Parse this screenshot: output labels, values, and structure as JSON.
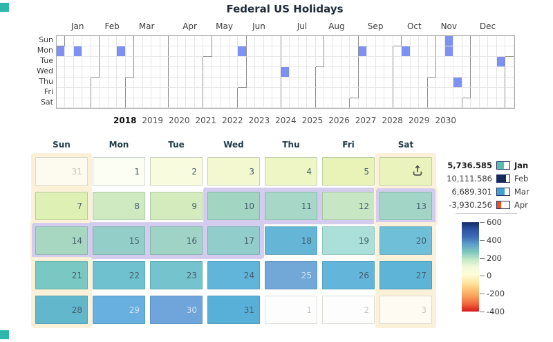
{
  "title": "Federal US Holidays",
  "brand_color": "#2eb6aa",
  "chart_data": {
    "type": "heatmap",
    "subtype": "calendar-year-plus-month-view",
    "title": "Federal US Holidays",
    "year_selected": 2018,
    "years_available": [
      2018,
      2019,
      2020,
      2021,
      2022,
      2023,
      2024,
      2025,
      2026,
      2027,
      2028,
      2029,
      2030
    ],
    "holidays": [
      "2018-01-01",
      "2018-01-15",
      "2018-02-19",
      "2018-05-28",
      "2018-07-04",
      "2018-09-03",
      "2018-10-08",
      "2018-11-11",
      "2018-11-12",
      "2018-11-22",
      "2018-12-25"
    ],
    "selected_range": [
      "2018-01-10",
      "2018-01-17"
    ],
    "legend_series": [
      {
        "label": "Jan",
        "value": 5736.585
      },
      {
        "label": "Feb",
        "value": 10111.586
      },
      {
        "label": "Mar",
        "value": 6689.301
      },
      {
        "label": "Apr",
        "value": -3930.256
      }
    ],
    "color_scale": {
      "min": -400,
      "max": 600,
      "ticks": [
        600,
        400,
        200,
        0,
        -200,
        -400
      ]
    },
    "values_encoded_as_color": true
  },
  "year_grid": {
    "weekday_labels": [
      "Sun",
      "Mon",
      "Tue",
      "Wed",
      "Thu",
      "Fri",
      "Sat"
    ],
    "month_labels": [
      "Jan",
      "Feb",
      "Mar",
      "Apr",
      "May",
      "Jun",
      "Jul",
      "Aug",
      "Sep",
      "Oct",
      "Nov",
      "Dec"
    ],
    "weeks": 53,
    "holiday_color": "#7e90f2",
    "holiday_cells": [
      {
        "w": 0,
        "d": 1
      },
      {
        "w": 2,
        "d": 1
      },
      {
        "w": 7,
        "d": 1
      },
      {
        "w": 21,
        "d": 1
      },
      {
        "w": 26,
        "d": 3
      },
      {
        "w": 35,
        "d": 1
      },
      {
        "w": 40,
        "d": 1
      },
      {
        "w": 45,
        "d": 0
      },
      {
        "w": 45,
        "d": 1
      },
      {
        "w": 46,
        "d": 4
      },
      {
        "w": 51,
        "d": 2
      }
    ]
  },
  "years_row": {
    "years": [
      "2018",
      "2019",
      "2020",
      "2021",
      "2022",
      "2023",
      "2024",
      "2025",
      "2026",
      "2027",
      "2028",
      "2029",
      "2030"
    ],
    "selected": "2018"
  },
  "month_view": {
    "day_headers": [
      "Sun",
      "Mon",
      "Tue",
      "Wed",
      "Thu",
      "Fri",
      "Sat"
    ],
    "halo_colors": {
      "weekend": "#fbf1d9",
      "selected": "#d3ccee"
    },
    "cells": [
      {
        "day": "31",
        "color": "#fdfaf0",
        "text": "out",
        "halo": "wk"
      },
      {
        "day": "1",
        "color": "#fcfdf3",
        "text": "dark",
        "halo": null
      },
      {
        "day": "2",
        "color": "#f8fbde",
        "text": "dark",
        "halo": null
      },
      {
        "day": "3",
        "color": "#f3f8d1",
        "text": "dark",
        "halo": null
      },
      {
        "day": "4",
        "color": "#eff6c5",
        "text": "dark",
        "halo": null
      },
      {
        "day": "5",
        "color": "#e9f3b8",
        "text": "dark",
        "halo": null
      },
      {
        "day": "",
        "color": "#eaf3bc",
        "text": "dark",
        "halo": "wk",
        "icon": "export-icon"
      },
      {
        "day": "7",
        "color": "#dff0b5",
        "text": "dark",
        "halo": "wk"
      },
      {
        "day": "8",
        "color": "#cfe9c0",
        "text": "dark",
        "halo": null
      },
      {
        "day": "9",
        "color": "#d4ebbe",
        "text": "dark",
        "halo": null
      },
      {
        "day": "10",
        "color": "#a3d5c3",
        "text": "dark",
        "halo": "sel"
      },
      {
        "day": "11",
        "color": "#a7d7c7",
        "text": "dark",
        "halo": "sel"
      },
      {
        "day": "12",
        "color": "#c7e6c3",
        "text": "dark",
        "halo": "sel"
      },
      {
        "day": "13",
        "color": "#a2d5c6",
        "text": "dark",
        "halo": "both"
      },
      {
        "day": "14",
        "color": "#a7d7c0",
        "text": "dark",
        "halo": "both"
      },
      {
        "day": "15",
        "color": "#93cfc8",
        "text": "dark",
        "halo": "sel"
      },
      {
        "day": "16",
        "color": "#9ed3c5",
        "text": "dark",
        "halo": "sel"
      },
      {
        "day": "17",
        "color": "#90cdcb",
        "text": "dark",
        "halo": "sel"
      },
      {
        "day": "18",
        "color": "#65b5d7",
        "text": "dark",
        "halo": null
      },
      {
        "day": "19",
        "color": "#abe0da",
        "text": "dark",
        "halo": null
      },
      {
        "day": "20",
        "color": "#70bfd8",
        "text": "dark",
        "halo": "wk"
      },
      {
        "day": "21",
        "color": "#7ac8c3",
        "text": "dark",
        "halo": "wk"
      },
      {
        "day": "22",
        "color": "#70c1cf",
        "text": "dark",
        "halo": null
      },
      {
        "day": "23",
        "color": "#75c3cd",
        "text": "dark",
        "halo": null
      },
      {
        "day": "24",
        "color": "#61b4da",
        "text": "dark",
        "halo": null
      },
      {
        "day": "25",
        "color": "#72a8d8",
        "text": "light",
        "halo": null
      },
      {
        "day": "26",
        "color": "#63b6da",
        "text": "dark",
        "halo": null
      },
      {
        "day": "27",
        "color": "#5db4d7",
        "text": "dark",
        "halo": "wk"
      },
      {
        "day": "28",
        "color": "#63b7cd",
        "text": "dark",
        "halo": "wk"
      },
      {
        "day": "29",
        "color": "#68b0e0",
        "text": "light",
        "halo": null
      },
      {
        "day": "30",
        "color": "#6fa5da",
        "text": "light",
        "halo": null
      },
      {
        "day": "31",
        "color": "#58b0d8",
        "text": "dark",
        "halo": null
      },
      {
        "day": "1",
        "color": "#fdfdfd",
        "text": "out",
        "halo": null
      },
      {
        "day": "2",
        "color": "#fdfdfd",
        "text": "out",
        "halo": null
      },
      {
        "day": "3",
        "color": "#fdfbf2",
        "text": "out",
        "halo": "wk"
      }
    ]
  },
  "legend": {
    "items": [
      {
        "value": "5,736.585",
        "label": "Jan",
        "color": "#5bbcb2",
        "fill": 55,
        "bold": true
      },
      {
        "value": "10,111.586",
        "label": "Feb",
        "color": "#15295f",
        "fill": 70,
        "bold": false
      },
      {
        "value": "6,689.301",
        "label": "Mar",
        "color": "#3f9ed2",
        "fill": 60,
        "bold": false
      },
      {
        "value": "-3,930.256",
        "label": "Apr",
        "color": "#f04e23",
        "fill": 35,
        "bold": false
      }
    ],
    "scale": {
      "ticks": [
        "600",
        "400",
        "200",
        "0",
        "-200",
        "-400"
      ],
      "gradient": [
        "#122b67",
        "#2d53a3",
        "#3e6db5",
        "#5fa0ca",
        "#7ec8be",
        "#c3e8c7",
        "#f1f9da",
        "#fffcd9",
        "#fee9a6",
        "#fdc776",
        "#f99e59",
        "#f0653a",
        "#d7191c"
      ]
    }
  }
}
